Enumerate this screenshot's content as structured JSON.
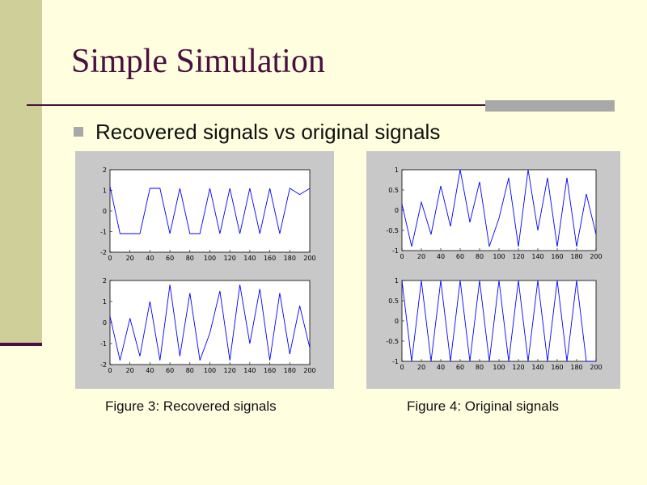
{
  "slide": {
    "title": "Simple Simulation",
    "bullet": "Recovered signals vs original signals",
    "background_color": "#FFFFE0",
    "accent_color": "#4A1040",
    "side_band_color": "#CFCF9A"
  },
  "figures": [
    {
      "caption": "Figure 3: Recovered signals"
    },
    {
      "caption": "Figure 4: Original signals"
    }
  ],
  "chart_data": [
    {
      "type": "line",
      "figure": 0,
      "x": [
        0,
        10,
        20,
        30,
        40,
        50,
        60,
        70,
        80,
        90,
        100,
        110,
        120,
        130,
        140,
        150,
        160,
        170,
        180,
        190,
        200
      ],
      "series": [
        {
          "values": [
            1.2,
            -1.1,
            -1.1,
            -1.1,
            1.1,
            1.1,
            -1.1,
            1.1,
            -1.1,
            -1.1,
            1.1,
            -1.1,
            1.1,
            -1.1,
            1.1,
            -1.1,
            1.1,
            -1.1,
            1.1,
            0.8,
            1.1
          ],
          "color": "#0000FF"
        }
      ],
      "xlim": [
        0,
        200
      ],
      "ylim": [
        -2,
        2
      ],
      "xticks": [
        "0",
        "20",
        "40",
        "60",
        "80",
        "100",
        "120",
        "140",
        "160",
        "180",
        "200"
      ],
      "yticks": [
        "-2",
        "-1",
        "0",
        "1",
        "2"
      ]
    },
    {
      "type": "line",
      "figure": 0,
      "x": [
        0,
        10,
        20,
        30,
        40,
        50,
        60,
        70,
        80,
        90,
        100,
        110,
        120,
        130,
        140,
        150,
        160,
        170,
        180,
        190,
        200
      ],
      "series": [
        {
          "values": [
            0.3,
            -1.8,
            0.2,
            -1.6,
            1.0,
            -1.8,
            1.8,
            -1.6,
            1.4,
            -1.8,
            -0.5,
            1.5,
            -1.8,
            1.8,
            -1.0,
            1.6,
            -1.8,
            1.4,
            -1.5,
            0.8,
            -1.2
          ],
          "color": "#0000FF"
        }
      ],
      "xlim": [
        0,
        200
      ],
      "ylim": [
        -2,
        2
      ],
      "xticks": [
        "0",
        "20",
        "40",
        "60",
        "80",
        "100",
        "120",
        "140",
        "160",
        "180",
        "200"
      ],
      "yticks": [
        "-2",
        "-1",
        "0",
        "1",
        "2"
      ]
    },
    {
      "type": "line",
      "figure": 1,
      "x": [
        0,
        10,
        20,
        30,
        40,
        50,
        60,
        70,
        80,
        90,
        100,
        110,
        120,
        130,
        140,
        150,
        160,
        170,
        180,
        190,
        200
      ],
      "series": [
        {
          "values": [
            0.15,
            -0.9,
            0.2,
            -0.6,
            0.6,
            -0.4,
            1.0,
            -0.3,
            0.7,
            -0.9,
            -0.2,
            0.8,
            -0.9,
            1.0,
            -0.5,
            0.8,
            -0.9,
            0.8,
            -0.9,
            0.4,
            -0.6
          ],
          "color": "#0000FF"
        }
      ],
      "xlim": [
        0,
        200
      ],
      "ylim": [
        -1,
        1
      ],
      "xticks": [
        "0",
        "20",
        "40",
        "60",
        "80",
        "100",
        "120",
        "140",
        "160",
        "180",
        "200"
      ],
      "yticks": [
        "-1",
        "-0.5",
        "0",
        "0.5",
        "1"
      ]
    },
    {
      "type": "line",
      "figure": 1,
      "x": [
        0,
        10,
        20,
        30,
        40,
        50,
        60,
        70,
        80,
        90,
        100,
        110,
        120,
        130,
        140,
        150,
        160,
        170,
        180,
        190,
        200
      ],
      "series": [
        {
          "values": [
            1,
            -1,
            1,
            -1,
            1,
            -1,
            1,
            -1,
            1,
            -1,
            1,
            -1,
            1,
            -1,
            1,
            -1,
            1,
            -1,
            1,
            -1,
            -1
          ],
          "color": "#0000FF"
        }
      ],
      "xlim": [
        0,
        200
      ],
      "ylim": [
        -1,
        1
      ],
      "xticks": [
        "0",
        "20",
        "40",
        "60",
        "80",
        "100",
        "120",
        "140",
        "160",
        "180",
        "200"
      ],
      "yticks": [
        "-1",
        "-0.5",
        "0",
        "0.5",
        "1"
      ]
    }
  ]
}
